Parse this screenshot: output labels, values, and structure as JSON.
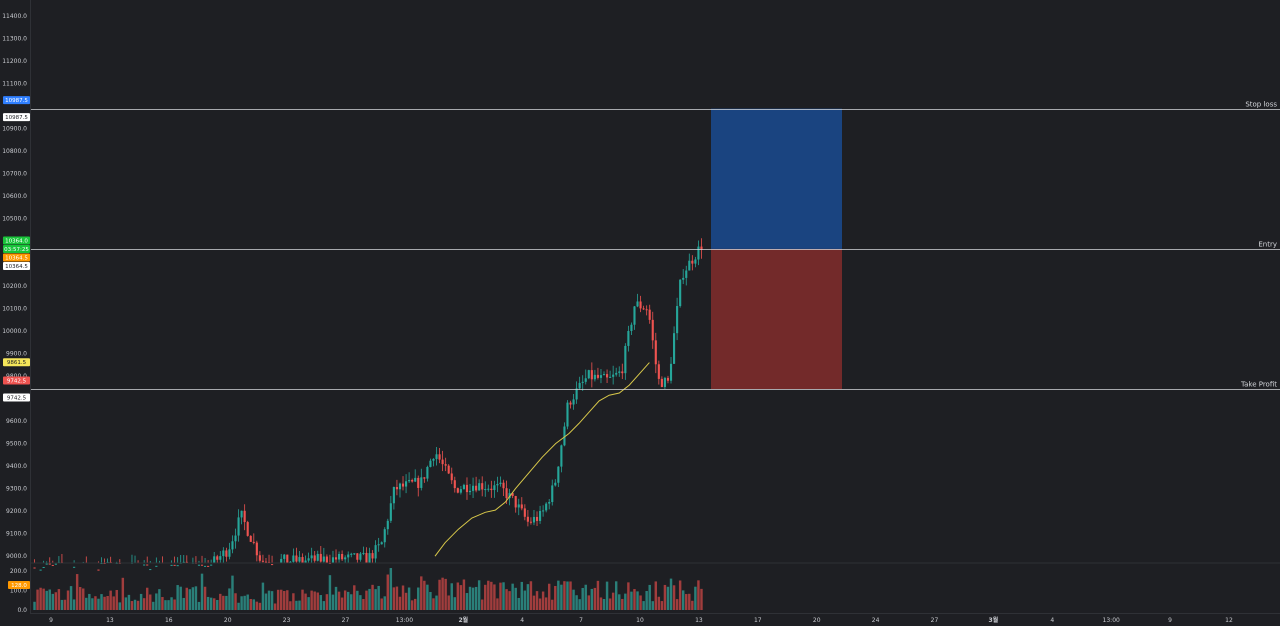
{
  "colors": {
    "background": "#1e1f23",
    "grid": "#2a2c31",
    "up": "#26a69a",
    "down": "#ef5350",
    "ma": "#d8c84a",
    "stop_zone": "#1a4480",
    "profit_zone": "#732a2a",
    "level_line": "#d6d8dd",
    "vol_up": "#2a7f79",
    "vol_down": "#a13d3d"
  },
  "levels": {
    "stop_loss": {
      "label": "Stop loss",
      "price": 10987.5
    },
    "entry": {
      "label": "Entry",
      "price": 10364.5
    },
    "take_profit": {
      "label": "Take Profit",
      "price": 9742.5
    }
  },
  "price_tags": [
    {
      "text": "10987.5",
      "price": 10987.5,
      "bg": "#2f7fff",
      "fg": "#ffffff",
      "offset": -1
    },
    {
      "text": "10987.5",
      "price": 10987.5,
      "bg": "#ffffff",
      "fg": "#1e1f23",
      "offset": 1
    },
    {
      "text": "10364.0",
      "price": 10364.5,
      "bg": "#19c43a",
      "fg": "#ffffff",
      "offset": -1
    },
    {
      "text": "03:57:25",
      "price": 10364.5,
      "bg": "#19c43a",
      "fg": "#ffffff",
      "offset": 0
    },
    {
      "text": "10364.5",
      "price": 10364.5,
      "bg": "#ff9800",
      "fg": "#ffffff",
      "offset": 1
    },
    {
      "text": "10364.5",
      "price": 10364.5,
      "bg": "#ffffff",
      "fg": "#1e1f23",
      "offset": 2
    },
    {
      "text": "9861.5",
      "price": 9861.5,
      "bg": "#f5e65a",
      "fg": "#1e1f23",
      "offset": 0
    },
    {
      "text": "9742.5",
      "price": 9742.5,
      "bg": "#ef5350",
      "fg": "#ffffff",
      "offset": -1
    },
    {
      "text": "9742.5",
      "price": 9742.5,
      "bg": "#ffffff",
      "fg": "#1e1f23",
      "offset": 1
    }
  ],
  "volume_tag": {
    "text": "128.0",
    "value": 128,
    "bg": "#ff9800",
    "fg": "#ffffff"
  },
  "chart_data": {
    "type": "candlestick",
    "price_axis": {
      "ticks": [
        "11400.0",
        "11300.0",
        "11200.0",
        "11100.0",
        "10900.0",
        "10800.0",
        "10700.0",
        "10600.0",
        "10500.0",
        "10400.0",
        "10200.0",
        "10100.0",
        "10000.0",
        "9900.0",
        "9800.0",
        "9600.0",
        "9500.0",
        "9400.0",
        "9300.0",
        "9200.0",
        "9100.0",
        "9000.0"
      ],
      "tick_values": [
        11400,
        11300,
        11200,
        11100,
        10900,
        10800,
        10700,
        10600,
        10500,
        10400,
        10200,
        10100,
        10000,
        9900,
        9800,
        9600,
        9500,
        9400,
        9300,
        9200,
        9100,
        9000
      ],
      "range": [
        8970,
        11470
      ]
    },
    "volume_axis": {
      "ticks": [
        "200.0",
        "100.0",
        "0.0"
      ],
      "tick_values": [
        200,
        100,
        0
      ],
      "range": [
        0,
        220
      ]
    },
    "time_axis": {
      "labels": [
        "9",
        "13",
        "16",
        "20",
        "23",
        "27",
        "13:00",
        "2월",
        "4",
        "7",
        "10",
        "13",
        "17",
        "20",
        "24",
        "27",
        "3월",
        "4",
        "13:00",
        "9",
        "12"
      ],
      "bold": [
        "2월",
        "3월"
      ]
    },
    "ma_points": [
      [
        0.6,
        9000
      ],
      [
        0.615,
        9060
      ],
      [
        0.635,
        9120
      ],
      [
        0.655,
        9170
      ],
      [
        0.675,
        9195
      ],
      [
        0.69,
        9205
      ],
      [
        0.705,
        9240
      ],
      [
        0.72,
        9300
      ],
      [
        0.74,
        9370
      ],
      [
        0.76,
        9440
      ],
      [
        0.78,
        9500
      ],
      [
        0.8,
        9545
      ],
      [
        0.815,
        9590
      ],
      [
        0.83,
        9640
      ],
      [
        0.845,
        9690
      ],
      [
        0.86,
        9715
      ],
      [
        0.875,
        9725
      ],
      [
        0.89,
        9760
      ],
      [
        0.905,
        9810
      ],
      [
        0.92,
        9860
      ]
    ],
    "candle_keypoints": [
      [
        0.0,
        8950
      ],
      [
        0.26,
        8950
      ],
      [
        0.29,
        9030
      ],
      [
        0.31,
        9180
      ],
      [
        0.34,
        8980
      ],
      [
        0.4,
        8980
      ],
      [
        0.46,
        8990
      ],
      [
        0.5,
        8990
      ],
      [
        0.52,
        9050
      ],
      [
        0.54,
        9300
      ],
      [
        0.58,
        9330
      ],
      [
        0.6,
        9470
      ],
      [
        0.63,
        9300
      ],
      [
        0.66,
        9320
      ],
      [
        0.7,
        9300
      ],
      [
        0.72,
        9240
      ],
      [
        0.74,
        9150
      ],
      [
        0.76,
        9180
      ],
      [
        0.78,
        9320
      ],
      [
        0.8,
        9680
      ],
      [
        0.83,
        9800
      ],
      [
        0.86,
        9780
      ],
      [
        0.88,
        9820
      ],
      [
        0.9,
        10120
      ],
      [
        0.92,
        10100
      ],
      [
        0.935,
        9780
      ],
      [
        0.95,
        9770
      ],
      [
        0.97,
        10250
      ],
      [
        1.0,
        10380
      ]
    ],
    "volume_keypoints": [
      [
        0.0,
        120
      ],
      [
        0.1,
        85
      ],
      [
        0.2,
        105
      ],
      [
        0.3,
        95
      ],
      [
        0.4,
        85
      ],
      [
        0.5,
        110
      ],
      [
        0.6,
        140
      ],
      [
        0.7,
        120
      ],
      [
        0.8,
        125
      ],
      [
        0.9,
        115
      ],
      [
        1.0,
        135
      ]
    ]
  }
}
